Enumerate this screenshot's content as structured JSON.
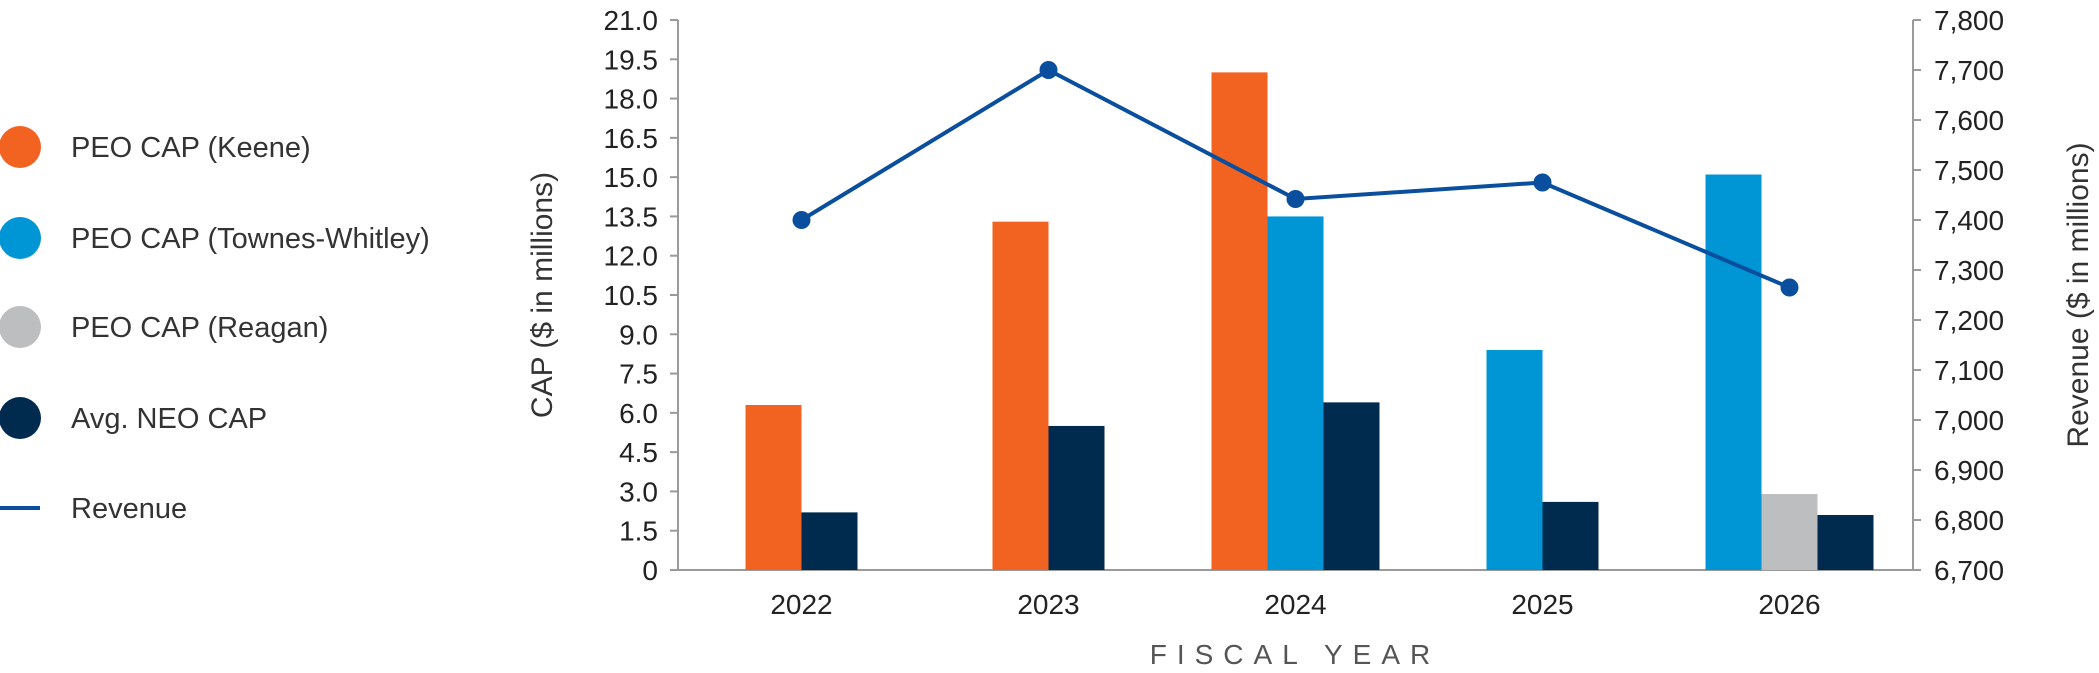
{
  "chart_data": {
    "type": "bar",
    "categories": [
      "2022",
      "2023",
      "2024",
      "2025",
      "2026"
    ],
    "xlabel": "FISCAL YEAR",
    "ylabel": "CAP ($ in millions)",
    "y2label": "Revenue ($ in millions)",
    "ylim": [
      0,
      21
    ],
    "y_ticks": [
      "0",
      "1.5",
      "3.0",
      "4.5",
      "6.0",
      "7.5",
      "9.0",
      "10.5",
      "12.0",
      "13.5",
      "15.0",
      "16.5",
      "18.0",
      "19.5",
      "21.0"
    ],
    "y2lim": [
      6700,
      7800
    ],
    "y2_ticks": [
      "6,700",
      "6,800",
      "6,900",
      "7,000",
      "7,100",
      "7,200",
      "7,300",
      "7,400",
      "7,500",
      "7,600",
      "7,700",
      "7,800"
    ],
    "series": [
      {
        "name": "PEO CAP (Keene)",
        "type": "bar",
        "color": "#f26322",
        "values": [
          6.3,
          13.3,
          19.0,
          null,
          null
        ]
      },
      {
        "name": "PEO CAP (Townes-Whitley)",
        "type": "bar",
        "color": "#0096d6",
        "values": [
          null,
          null,
          13.5,
          8.4,
          15.1
        ]
      },
      {
        "name": "PEO CAP (Reagan)",
        "type": "bar",
        "color": "#bcbec0",
        "values": [
          null,
          null,
          null,
          null,
          2.9
        ]
      },
      {
        "name": "Avg. NEO CAP",
        "type": "bar",
        "color": "#002a4e",
        "values": [
          2.2,
          5.5,
          6.4,
          2.6,
          2.1
        ]
      },
      {
        "name": "Revenue",
        "type": "line",
        "axis": "right",
        "color": "#0a4f9e",
        "values": [
          7400,
          7700,
          7442,
          7475,
          7265
        ]
      }
    ],
    "legend_position": "left",
    "grid": false
  }
}
